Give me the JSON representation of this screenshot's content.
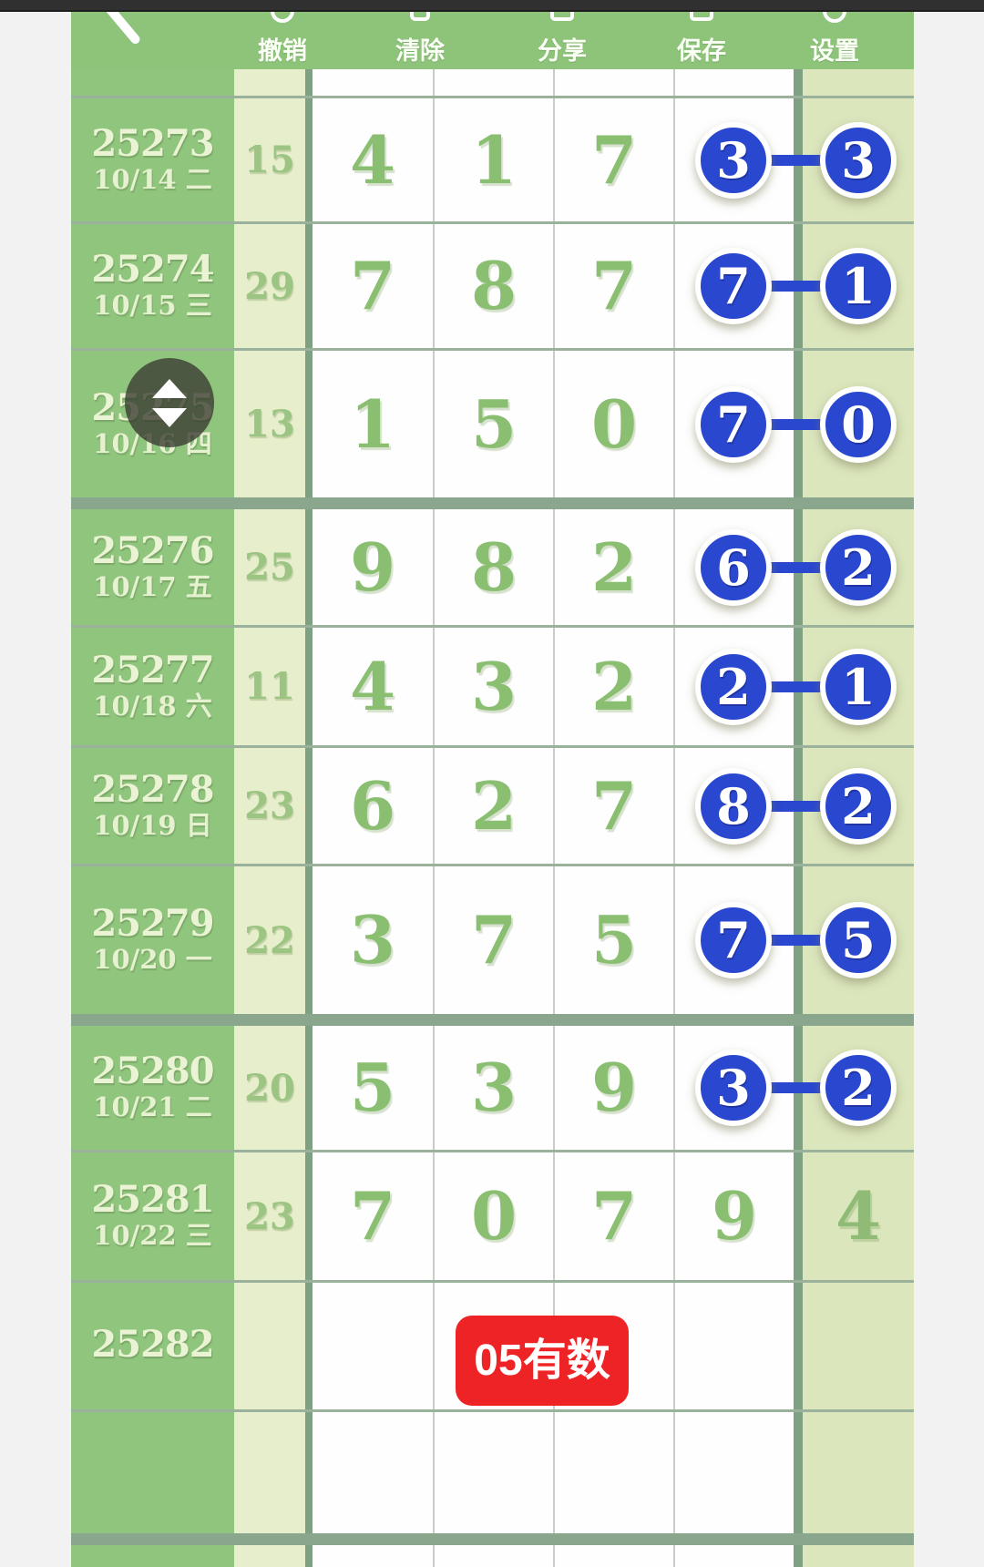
{
  "toolbar": {
    "back": "back",
    "items": [
      {
        "label": "撤销",
        "icon": "undo-icon"
      },
      {
        "label": "清除",
        "icon": "trash-icon"
      },
      {
        "label": "分享",
        "icon": "share-icon"
      },
      {
        "label": "保存",
        "icon": "save-icon"
      },
      {
        "label": "设置",
        "icon": "gear-icon"
      }
    ]
  },
  "colors": {
    "toolbar_green": "#8dc47a",
    "period_green": "#90c57e",
    "sum_column": "#e6eecb",
    "right_column": "#dbe6bd",
    "digit_green": "#8abf72",
    "circle_blue": "#2a47cf",
    "button_red": "#ee2326",
    "group_border": "#8aa78d"
  },
  "table": {
    "rows": [
      {
        "kind": "partial"
      },
      {
        "kind": "data",
        "period": "25273",
        "date": "10/14 二",
        "sum": "15",
        "d1": "4",
        "d2": "1",
        "d3": "7",
        "left_circle": "3",
        "right_circle": "3",
        "pair": true
      },
      {
        "kind": "data",
        "period": "25274",
        "date": "10/15 三",
        "sum": "29",
        "d1": "7",
        "d2": "8",
        "d3": "7",
        "left_circle": "7",
        "right_circle": "1",
        "pair": true
      },
      {
        "kind": "data",
        "period": "25275",
        "date": "10/16 四",
        "sum": "13",
        "d1": "1",
        "d2": "5",
        "d3": "0",
        "left_circle": "7",
        "right_circle": "0",
        "pair": true,
        "group_end": true
      },
      {
        "kind": "data",
        "period": "25276",
        "date": "10/17 五",
        "sum": "25",
        "d1": "9",
        "d2": "8",
        "d3": "2",
        "left_circle": "6",
        "right_circle": "2",
        "pair": true
      },
      {
        "kind": "data",
        "period": "25277",
        "date": "10/18 六",
        "sum": "11",
        "d1": "4",
        "d2": "3",
        "d3": "2",
        "left_circle": "2",
        "right_circle": "1",
        "pair": true
      },
      {
        "kind": "data",
        "period": "25278",
        "date": "10/19 日",
        "sum": "23",
        "d1": "6",
        "d2": "2",
        "d3": "7",
        "left_circle": "8",
        "right_circle": "2",
        "pair": true
      },
      {
        "kind": "data",
        "period": "25279",
        "date": "10/20 一",
        "sum": "22",
        "d1": "3",
        "d2": "7",
        "d3": "5",
        "left_circle": "7",
        "right_circle": "5",
        "pair": true,
        "group_end": true
      },
      {
        "kind": "data",
        "period": "25280",
        "date": "10/21 二",
        "sum": "20",
        "d1": "5",
        "d2": "3",
        "d3": "9",
        "left_circle": "3",
        "right_circle": "2",
        "pair": true
      },
      {
        "kind": "data",
        "period": "25281",
        "date": "10/22 三",
        "sum": "23",
        "d1": "7",
        "d2": "0",
        "d3": "7",
        "col4_plain": "9",
        "right_plain": "4"
      },
      {
        "kind": "button",
        "period": "25282",
        "button_label": "05有数"
      },
      {
        "kind": "empty",
        "group_end": true
      },
      {
        "kind": "partial"
      }
    ]
  },
  "scroll_handle": {
    "up_icon": "triangle-up",
    "down_icon": "triangle-down"
  }
}
